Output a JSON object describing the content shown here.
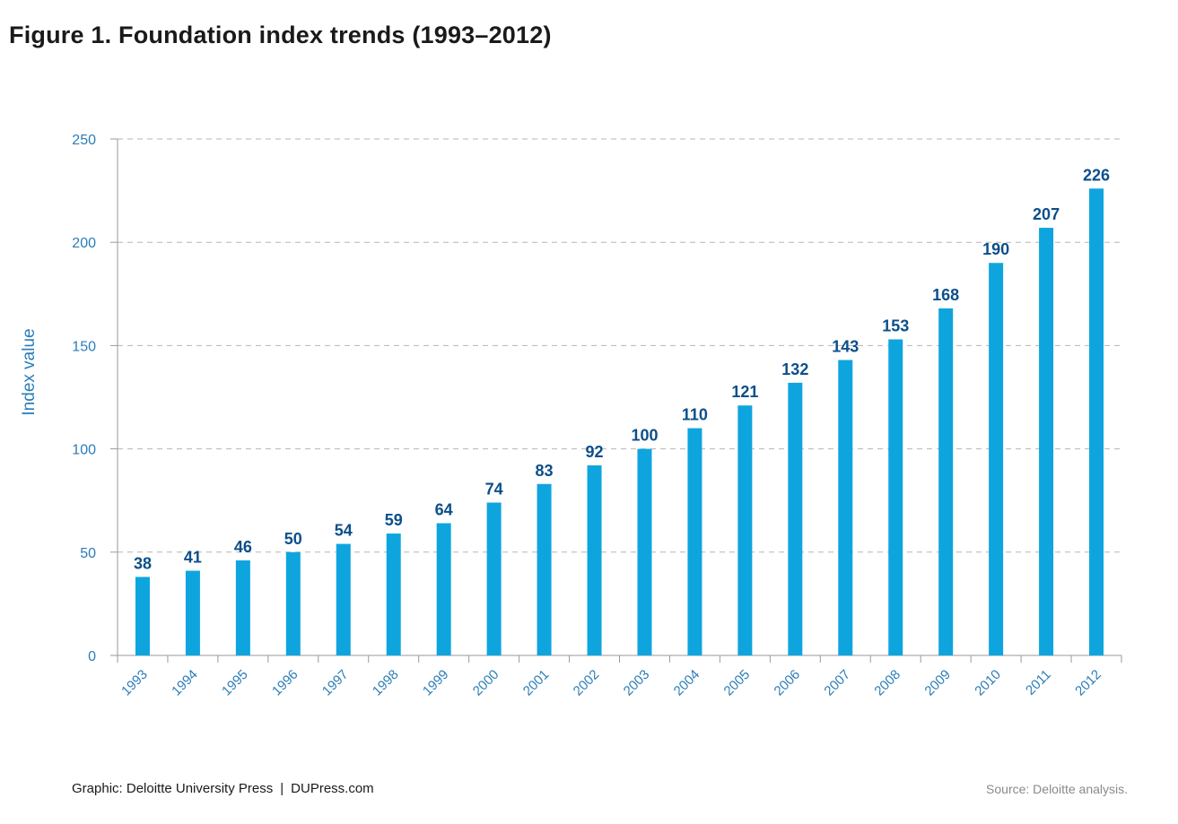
{
  "title": "Figure 1. Foundation index trends (1993–2012)",
  "footer": {
    "graphic_credit": "Graphic: Deloitte University Press",
    "separator": "|",
    "site": "DUPress.com",
    "source": "Source: Deloitte analysis."
  },
  "colors": {
    "bar": "#0ea5df",
    "label": "#0b4f8a",
    "axis_text": "#2b7db8",
    "grid": "#b5b5b5"
  },
  "chart_data": {
    "type": "bar",
    "title": "Figure 1. Foundation index trends (1993–2012)",
    "xlabel": "",
    "ylabel": "Index value",
    "ylim": [
      0,
      250
    ],
    "yticks": [
      0,
      50,
      100,
      150,
      200,
      250
    ],
    "grid": "horizontal dashed",
    "categories": [
      "1993",
      "1994",
      "1995",
      "1996",
      "1997",
      "1998",
      "1999",
      "2000",
      "2001",
      "2002",
      "2003",
      "2004",
      "2005",
      "2006",
      "2007",
      "2008",
      "2009",
      "2010",
      "2011",
      "2012"
    ],
    "values": [
      38,
      41,
      46,
      50,
      54,
      59,
      64,
      74,
      83,
      92,
      100,
      110,
      121,
      132,
      143,
      153,
      168,
      190,
      207,
      226
    ],
    "data_labels": [
      "38",
      "41",
      "46",
      "50",
      "54",
      "59",
      "64",
      "74",
      "83",
      "92",
      "100",
      "110",
      "121",
      "132",
      "143",
      "153",
      "168",
      "190",
      "207",
      "226"
    ]
  }
}
